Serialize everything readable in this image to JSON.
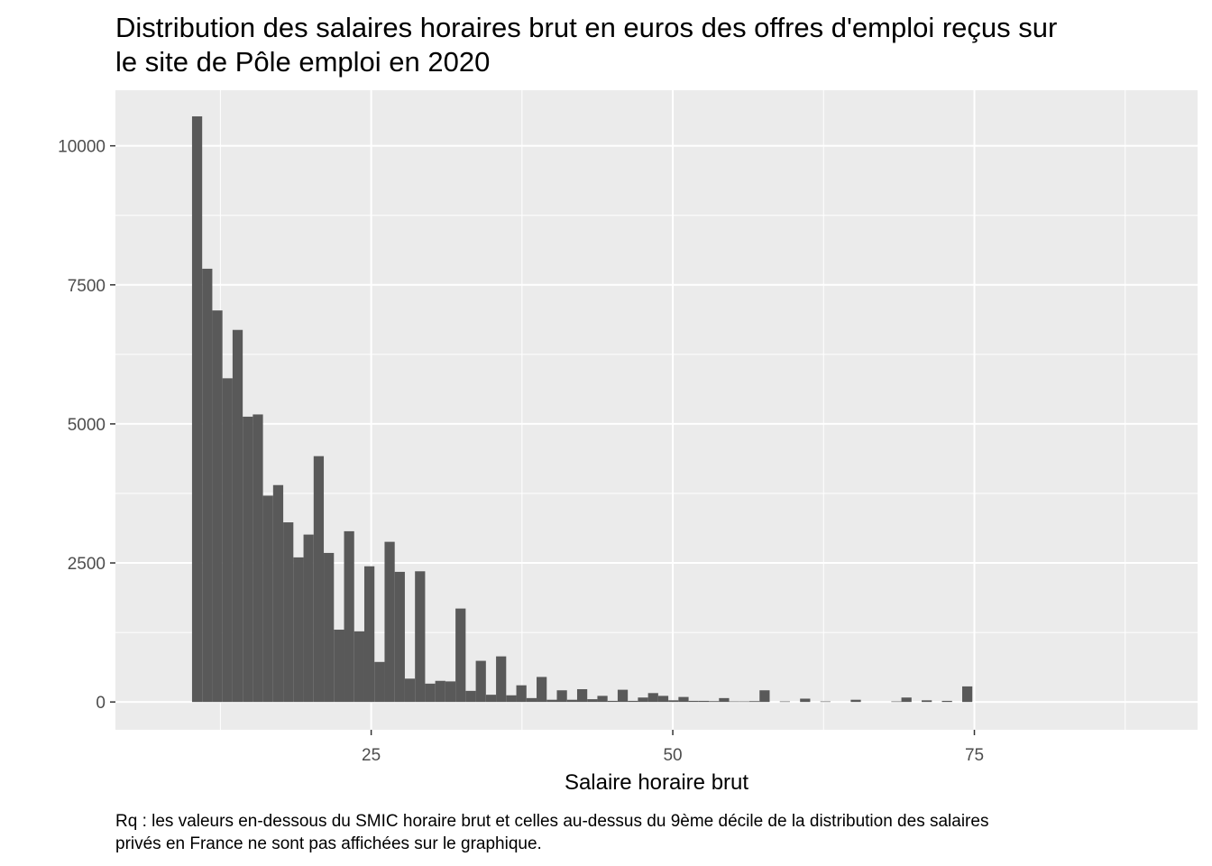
{
  "chart_data": {
    "type": "bar",
    "title_lines": [
      "Distribution des salaires horaires brut en euros des offres d'emploi reçus sur",
      "le site de Pôle emploi en 2020"
    ],
    "xlabel": "Salaire horaire brut",
    "ylabel": "",
    "caption_lines": [
      "Rq : les valeurs en-dessous du SMIC horaire brut et celles au-dessus du 9ème décile de la distribution des salaires",
      "privés en France ne sont pas affichées sur le graphique."
    ],
    "xlim": [
      3.8,
      93.5
    ],
    "ylim": [
      -500,
      11000
    ],
    "x_ticks": [
      25,
      50,
      75
    ],
    "x_tick_labels": [
      "25",
      "50",
      "75"
    ],
    "y_ticks": [
      0,
      2500,
      5000,
      7500,
      10000
    ],
    "y_tick_labels": [
      "0",
      "2500",
      "5000",
      "7500",
      "10000"
    ],
    "bin_width": 0.84,
    "bin_start": 10.15,
    "values": [
      10530,
      7790,
      7040,
      5820,
      6690,
      5130,
      5170,
      3710,
      3900,
      3230,
      2600,
      3010,
      4420,
      2680,
      1300,
      3070,
      1270,
      2440,
      720,
      2880,
      2340,
      420,
      2350,
      330,
      380,
      370,
      1680,
      200,
      740,
      130,
      820,
      120,
      300,
      70,
      450,
      40,
      210,
      40,
      230,
      50,
      110,
      20,
      220,
      20,
      80,
      160,
      110,
      30,
      90,
      20,
      20,
      15,
      70,
      10,
      10,
      15,
      210,
      0,
      10,
      0,
      60,
      0,
      10,
      0,
      0,
      40,
      0,
      0,
      0,
      10,
      80,
      0,
      30,
      0,
      20,
      0,
      280
    ],
    "bar_color": "#595959",
    "panel_background": "#ebebeb",
    "grid": true,
    "grid_color": "#ffffff"
  }
}
